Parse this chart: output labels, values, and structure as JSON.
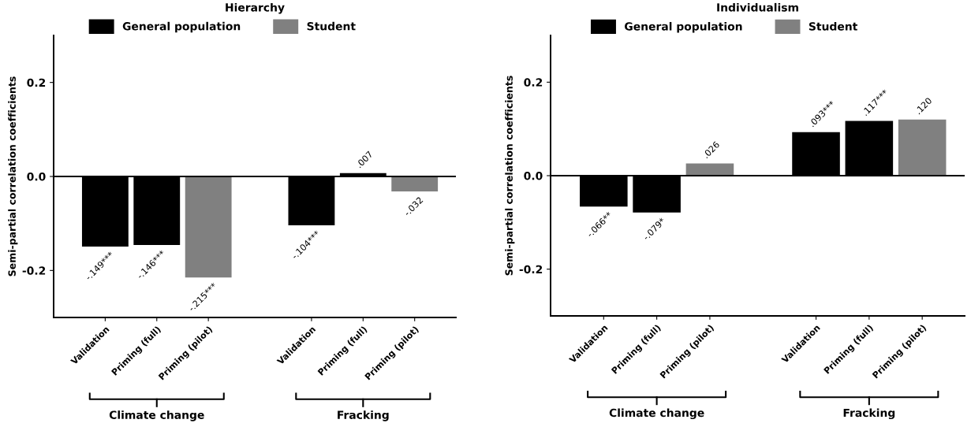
{
  "chart_data": [
    {
      "type": "bar",
      "title": "Hierarchy",
      "ylabel": "Semi-partial correlation coefficients",
      "categories": [
        "Validation",
        "Priming (full)",
        "Priming (pilot)",
        null,
        "Validation",
        "Priming (full)",
        "Priming (pilot)"
      ],
      "series": [
        {
          "name": "General population",
          "color": "#000000",
          "values": [
            -0.149,
            -0.146,
            null,
            null,
            -0.104,
            0.007,
            null
          ],
          "value_labels": [
            "-.149***",
            "-.146***",
            null,
            null,
            "-.104***",
            ".007",
            null
          ]
        },
        {
          "name": "Student",
          "color": "#808080",
          "values": [
            null,
            null,
            -0.215,
            null,
            null,
            null,
            -0.032
          ],
          "value_labels": [
            null,
            null,
            "-.215***",
            null,
            null,
            null,
            "-.032"
          ]
        }
      ],
      "ylim": [
        -0.3,
        0.3
      ],
      "yticks": [
        {
          "value": -0.2,
          "label": "-0.2"
        },
        {
          "value": 0,
          "label": "0.0"
        },
        {
          "value": 0.2,
          "label": "0.2"
        }
      ],
      "ref_lines": [
        {
          "axis": "y",
          "value": 0
        }
      ],
      "annotations": [
        "Climate change",
        "Fracking"
      ],
      "legend": "top",
      "grid": false
    },
    {
      "type": "bar",
      "title": "Individualism",
      "ylabel": "Semi-partial correlation coefficients",
      "categories": [
        "Validation",
        "Priming (full)",
        "Priming (pilot)",
        null,
        "Validation",
        "Priming (full)",
        "Priming (pilot)"
      ],
      "series": [
        {
          "name": "General population",
          "color": "#000000",
          "values": [
            -0.066,
            -0.079,
            null,
            null,
            0.093,
            0.117,
            null
          ],
          "value_labels": [
            "-.066**",
            "-.079*",
            null,
            null,
            ".093***",
            ".117***",
            null
          ]
        },
        {
          "name": "Student",
          "color": "#808080",
          "values": [
            null,
            null,
            0.026,
            null,
            null,
            null,
            0.12
          ],
          "value_labels": [
            null,
            null,
            ".026",
            null,
            null,
            null,
            ".120"
          ]
        }
      ],
      "ylim": [
        -0.3,
        0.3
      ],
      "yticks": [
        {
          "value": -0.2,
          "label": "-0.2"
        },
        {
          "value": 0,
          "label": "0.0"
        },
        {
          "value": 0.2,
          "label": "0.2"
        }
      ],
      "ref_lines": [
        {
          "axis": "y",
          "value": 0
        }
      ],
      "annotations": [
        "Climate change",
        "Fracking"
      ],
      "legend": "top",
      "grid": false
    }
  ]
}
